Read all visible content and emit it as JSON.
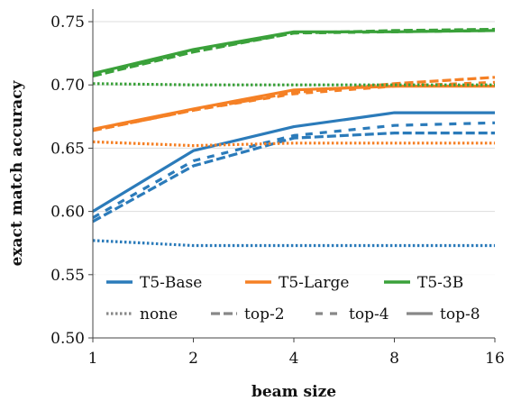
{
  "chart_data": {
    "type": "line",
    "xlabel": "beam size",
    "ylabel": "exact match accuracy",
    "x": [
      1,
      2,
      4,
      8,
      16
    ],
    "x_tick_labels": [
      "1",
      "2",
      "4",
      "8",
      "16"
    ],
    "x_scale": "log2",
    "ylim": [
      0.5,
      0.76
    ],
    "y_ticks": [
      0.5,
      0.55,
      0.6,
      0.65,
      0.7,
      0.75
    ],
    "y_tick_labels": [
      "0.50",
      "0.55",
      "0.60",
      "0.65",
      "0.70",
      "0.75"
    ],
    "grid": "y",
    "legend": {
      "placement": "bottom-right",
      "models": [
        {
          "name": "T5-Base",
          "color": "#2b7bba"
        },
        {
          "name": "T5-Large",
          "color": "#f58025"
        },
        {
          "name": "T5-3B",
          "color": "#3aa13a"
        }
      ],
      "styles": [
        {
          "name": "none",
          "dash": "dotted"
        },
        {
          "name": "top-2",
          "dash": "dashed"
        },
        {
          "name": "top-4",
          "dash": "dashed-long"
        },
        {
          "name": "top-8",
          "dash": "solid"
        }
      ]
    },
    "series": [
      {
        "model": "T5-Base",
        "style": "none",
        "values": [
          0.577,
          0.573,
          0.573,
          0.573,
          0.573
        ]
      },
      {
        "model": "T5-Base",
        "style": "top-2",
        "values": [
          0.592,
          0.636,
          0.658,
          0.662,
          0.662
        ]
      },
      {
        "model": "T5-Base",
        "style": "top-4",
        "values": [
          0.595,
          0.64,
          0.66,
          0.668,
          0.67
        ]
      },
      {
        "model": "T5-Base",
        "style": "top-8",
        "values": [
          0.6,
          0.648,
          0.667,
          0.678,
          0.678
        ]
      },
      {
        "model": "T5-Large",
        "style": "none",
        "values": [
          0.655,
          0.652,
          0.654,
          0.654,
          0.654
        ]
      },
      {
        "model": "T5-Large",
        "style": "top-2",
        "values": [
          0.664,
          0.68,
          0.694,
          0.701,
          0.706
        ]
      },
      {
        "model": "T5-Large",
        "style": "top-4",
        "values": [
          0.664,
          0.68,
          0.693,
          0.699,
          0.702
        ]
      },
      {
        "model": "T5-Large",
        "style": "top-8",
        "values": [
          0.665,
          0.681,
          0.696,
          0.699,
          0.699
        ]
      },
      {
        "model": "T5-3B",
        "style": "none",
        "values": [
          0.701,
          0.7,
          0.7,
          0.7,
          0.7
        ]
      },
      {
        "model": "T5-3B",
        "style": "top-2",
        "values": [
          0.707,
          0.726,
          0.741,
          0.743,
          0.744
        ]
      },
      {
        "model": "T5-3B",
        "style": "top-4",
        "values": [
          0.708,
          0.727,
          0.741,
          0.742,
          0.743
        ]
      },
      {
        "model": "T5-3B",
        "style": "top-8",
        "values": [
          0.709,
          0.728,
          0.742,
          0.742,
          0.743
        ]
      }
    ]
  }
}
